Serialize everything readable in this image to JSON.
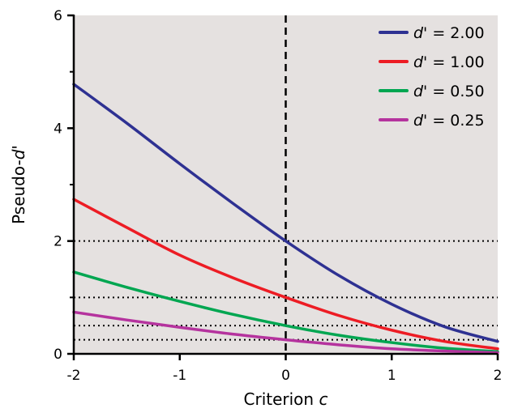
{
  "chart_data": {
    "type": "line",
    "title": "",
    "xlabel": "Criterion c",
    "ylabel": "Pseudo-d'",
    "xlabel_parts": {
      "text": "Criterion ",
      "italic": "c"
    },
    "ylabel_parts": {
      "text": "Pseudo-",
      "italic": "d'"
    },
    "xlim": [
      -2,
      2
    ],
    "ylim": [
      0,
      6
    ],
    "xticks": [
      -2,
      -1,
      0,
      1,
      2
    ],
    "yticks": [
      0,
      2,
      4,
      6
    ],
    "x_tick_labels": [
      "-2",
      "-1",
      "0",
      "1",
      "2"
    ],
    "y_tick_labels": [
      "0",
      "2",
      "4",
      "6"
    ],
    "plot_background": "#e5e1e0",
    "grid": false,
    "legend_position": "top-right",
    "reference_lines": {
      "vertical_dashed_x": 0,
      "horizontal_dotted_y": [
        2,
        1,
        0.5,
        0.25
      ]
    },
    "series": [
      {
        "name": "d' = 2.00",
        "legend": {
          "italic": "d'",
          "text": " = 2.00"
        },
        "color": "#2e3192",
        "d": 2.0,
        "x": [
          -2,
          -1.5,
          -1,
          -0.5,
          0,
          0.5,
          1,
          1.5,
          2
        ],
        "y": [
          4.78,
          4.09,
          3.37,
          2.67,
          2.0,
          1.39,
          0.88,
          0.48,
          0.22
        ]
      },
      {
        "name": "d' = 1.00",
        "legend": {
          "italic": "d'",
          "text": " = 1.00"
        },
        "color": "#ed1c24",
        "d": 1.0,
        "x": [
          -2,
          -1.5,
          -1,
          -0.5,
          0,
          0.5,
          1,
          1.5,
          2
        ],
        "y": [
          2.74,
          2.24,
          1.75,
          1.35,
          1.0,
          0.68,
          0.42,
          0.22,
          0.09
        ]
      },
      {
        "name": "d' = 0.50",
        "legend": {
          "italic": "d'",
          "text": " = 0.50"
        },
        "color": "#00a651",
        "d": 0.5,
        "x": [
          -2,
          -1.5,
          -1,
          -0.5,
          0,
          0.5,
          1,
          1.5,
          2
        ],
        "y": [
          1.45,
          1.18,
          0.93,
          0.7,
          0.5,
          0.33,
          0.2,
          0.1,
          0.04
        ]
      },
      {
        "name": "d' = 0.25",
        "legend": {
          "italic": "d'",
          "text": " = 0.25"
        },
        "color": "#b5339e",
        "d": 0.25,
        "x": [
          -2,
          -1.5,
          -1,
          -0.5,
          0,
          0.5,
          1,
          1.5,
          2
        ],
        "y": [
          0.74,
          0.6,
          0.47,
          0.35,
          0.25,
          0.16,
          0.09,
          0.05,
          0.02
        ]
      }
    ]
  }
}
